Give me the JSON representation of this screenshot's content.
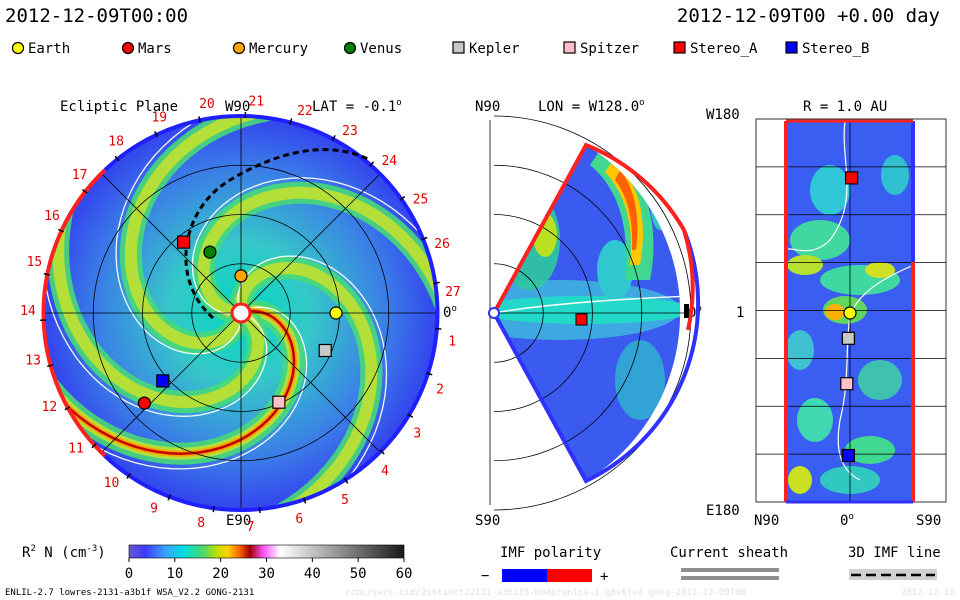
{
  "header": {
    "timestamp_left": "2012-12-09T00:00",
    "timestamp_right": "2012-12-09T00 +0.00 day"
  },
  "legend": [
    {
      "name": "Earth",
      "color": "#ffff00",
      "shape": "circle"
    },
    {
      "name": "Mars",
      "color": "#ff0000",
      "shape": "circle"
    },
    {
      "name": "Mercury",
      "color": "#ffa500",
      "shape": "circle"
    },
    {
      "name": "Venus",
      "color": "#008000",
      "shape": "circle"
    },
    {
      "name": "Kepler",
      "color": "#c8c8c8",
      "shape": "square"
    },
    {
      "name": "Spitzer",
      "color": "#ffc0cb",
      "shape": "square"
    },
    {
      "name": "Stereo_A",
      "color": "#ff0000",
      "shape": "square"
    },
    {
      "name": "Stereo_B",
      "color": "#0000ff",
      "shape": "square"
    }
  ],
  "panels": {
    "ecliptic": {
      "title": "Ecliptic Plane",
      "lat": "LAT = -0.1",
      "lat_sup": "o",
      "label_top": "W90",
      "label_bottom": "E90",
      "label_right": "0",
      "label_right_sup": "o",
      "carrington_ticks": [
        "1",
        "2",
        "3",
        "4",
        "5",
        "6",
        "7",
        "8",
        "9",
        "10",
        "11",
        "12",
        "13",
        "14",
        "15",
        "16",
        "17",
        "18",
        "19",
        "20",
        "21",
        "22",
        "23",
        "24",
        "25",
        "26",
        "27"
      ]
    },
    "meridional": {
      "title": "LON = W128.0",
      "title_sup": "o",
      "label_top": "N90",
      "label_bottom": "S90",
      "label_right": "0",
      "label_right_sup": "o"
    },
    "radial": {
      "title": "R = 1.0 AU",
      "label_top_left": "W180",
      "label_bottom_left": "E180",
      "label_mid_left": "1",
      "label_bottom_n": "N90",
      "label_bottom_0": "0",
      "label_bottom_0_sup": "o",
      "label_bottom_s": "S90"
    }
  },
  "colorbar": {
    "label": "R",
    "label_sup": "2",
    "label_rest": " N (cm",
    "label_exp": "-3",
    "label_end": ")",
    "ticks": [
      "0",
      "10",
      "20",
      "30",
      "40",
      "50",
      "60"
    ]
  },
  "imf_polarity": {
    "label": "IMF polarity",
    "minus": "−",
    "plus": "+",
    "neg_color": "#0000ff",
    "pos_color": "#ff0000"
  },
  "current_sheath": {
    "label": "Current sheath"
  },
  "imf_line": {
    "label": "3D IMF line"
  },
  "footer": {
    "model": "ENLIL-2.7 lowres-2131-a3b1f WSA_V2.2 GONG-2131",
    "run_id": "ccmc/swrc-cid/2s6tsoctJ2131-a3b1f5-modprun1ca-1.g8s6fs4 gong-2012-12-09T00",
    "date_right": "2012-12-10"
  },
  "chart_data": [
    {
      "type": "heatmap",
      "title": "Ecliptic Plane",
      "subtitle": "LAT = -0.1°",
      "quantity": "R^2 N (cm^-3)",
      "color_range": [
        0,
        60
      ],
      "objects": [
        {
          "name": "Earth",
          "angle_deg": 0,
          "r_au": 1.0
        },
        {
          "name": "Mercury",
          "angle_deg": 90,
          "r_au": 0.39
        },
        {
          "name": "Venus",
          "angle_deg": 117,
          "r_au": 0.72
        },
        {
          "name": "Mars",
          "angle_deg": 223,
          "r_au": 1.39
        },
        {
          "name": "Kepler",
          "angle_deg": 336,
          "r_au": 0.97
        },
        {
          "name": "Spitzer",
          "angle_deg": 293,
          "r_au": 1.02
        },
        {
          "name": "Stereo_A",
          "angle_deg": 129,
          "r_au": 0.96
        },
        {
          "name": "Stereo_B",
          "angle_deg": 221,
          "r_au": 1.09
        }
      ]
    },
    {
      "type": "heatmap",
      "title": "LON = W128.0°",
      "quantity": "R^2 N (cm^-3)",
      "latitude_range": [
        -60,
        60
      ],
      "objects": [
        {
          "name": "Stereo_A",
          "lat_deg": 0,
          "r_au": 0.96
        }
      ]
    },
    {
      "type": "heatmap",
      "title": "R = 1.0 AU",
      "xlabel_ticks": [
        "N90",
        "0°",
        "S90"
      ],
      "ylabel_ticks": [
        "W180",
        "1",
        "E180"
      ],
      "objects": [
        {
          "name": "Earth",
          "lon_deg": 0,
          "lat_deg": 0
        },
        {
          "name": "Stereo_A",
          "lon_deg": 128,
          "lat_deg": -2
        },
        {
          "name": "Kepler",
          "lon_deg": -24,
          "lat_deg": 2
        },
        {
          "name": "Spitzer",
          "lon_deg": -67,
          "lat_deg": 4
        },
        {
          "name": "Stereo_B",
          "lon_deg": -135,
          "lat_deg": 2
        }
      ]
    }
  ]
}
